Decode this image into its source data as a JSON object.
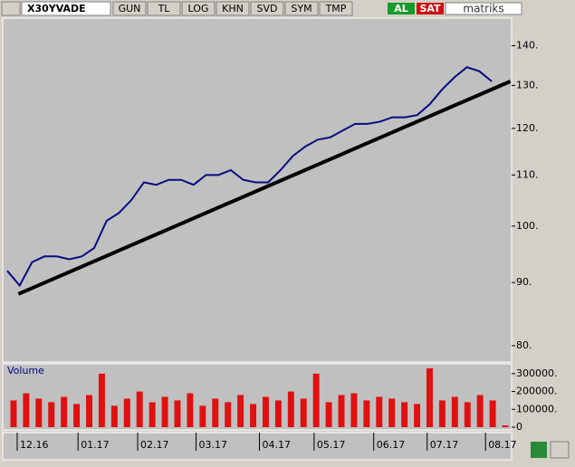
{
  "toolbar": {
    "symbol": "X30YVADE",
    "buttons": [
      "GUN",
      "TL",
      "LOG",
      "KHN",
      "SVD",
      "SYM",
      "TMP"
    ],
    "buy": "AL",
    "sell": "SAT",
    "brand": "matriks"
  },
  "chart_data": [
    {
      "type": "line",
      "log_scale": true,
      "series": [
        {
          "color": "#0a0a80",
          "values": [
            92,
            89.5,
            93.5,
            94.5,
            94.5,
            94,
            94.5,
            96,
            101,
            102.5,
            105,
            108.5,
            108,
            109,
            109,
            108,
            110,
            110,
            111,
            109,
            108.5,
            108.5,
            111,
            114,
            116,
            117.5,
            118,
            119.5,
            121,
            121,
            121.5,
            122.5,
            122.5,
            123,
            125.5,
            129,
            132,
            134.5,
            133.5,
            131
          ]
        }
      ],
      "trend_line": {
        "x": [
          0.9,
          40.5
        ],
        "values": [
          88.1,
          131
        ]
      },
      "xlim": [
        0,
        40.6
      ],
      "xticks": [
        {
          "value": 0.8,
          "label": "12.16"
        },
        {
          "value": 5.7,
          "label": "01.17"
        },
        {
          "value": 10.5,
          "label": "02.17"
        },
        {
          "value": 15.2,
          "label": "03.17"
        },
        {
          "value": 20.3,
          "label": "04.17"
        },
        {
          "value": 24.7,
          "label": "05.17"
        },
        {
          "value": 29.5,
          "label": "06.17"
        },
        {
          "value": 33.8,
          "label": "07.17"
        },
        {
          "value": 38.5,
          "label": "08.17"
        }
      ],
      "ylim": [
        77.6,
        147.4
      ],
      "yticks": [
        {
          "value": 80,
          "label": "80."
        },
        {
          "value": 90,
          "label": "90."
        },
        {
          "value": 100,
          "label": "100."
        },
        {
          "value": 110,
          "label": "110."
        },
        {
          "value": 120,
          "label": "120."
        },
        {
          "value": 130,
          "label": "130."
        },
        {
          "value": 140,
          "label": "140."
        }
      ]
    },
    {
      "type": "bar",
      "title": "Volume",
      "color": "#e01010",
      "values": [
        150000,
        190000,
        160000,
        140000,
        170000,
        130000,
        180000,
        300000,
        120000,
        160000,
        200000,
        140000,
        170000,
        150000,
        190000,
        120000,
        160000,
        140000,
        180000,
        130000,
        170000,
        150000,
        200000,
        160000,
        300000,
        140000,
        180000,
        190000,
        150000,
        170000,
        160000,
        140000,
        130000,
        330000,
        150000,
        170000,
        140000,
        180000,
        150000,
        10000
      ],
      "ylim": [
        0,
        350000
      ],
      "yticks": [
        {
          "value": 0,
          "label": "0"
        },
        {
          "value": 100000,
          "label": "100000."
        },
        {
          "value": 200000,
          "label": "200000."
        },
        {
          "value": 300000,
          "label": "300000."
        }
      ]
    }
  ]
}
